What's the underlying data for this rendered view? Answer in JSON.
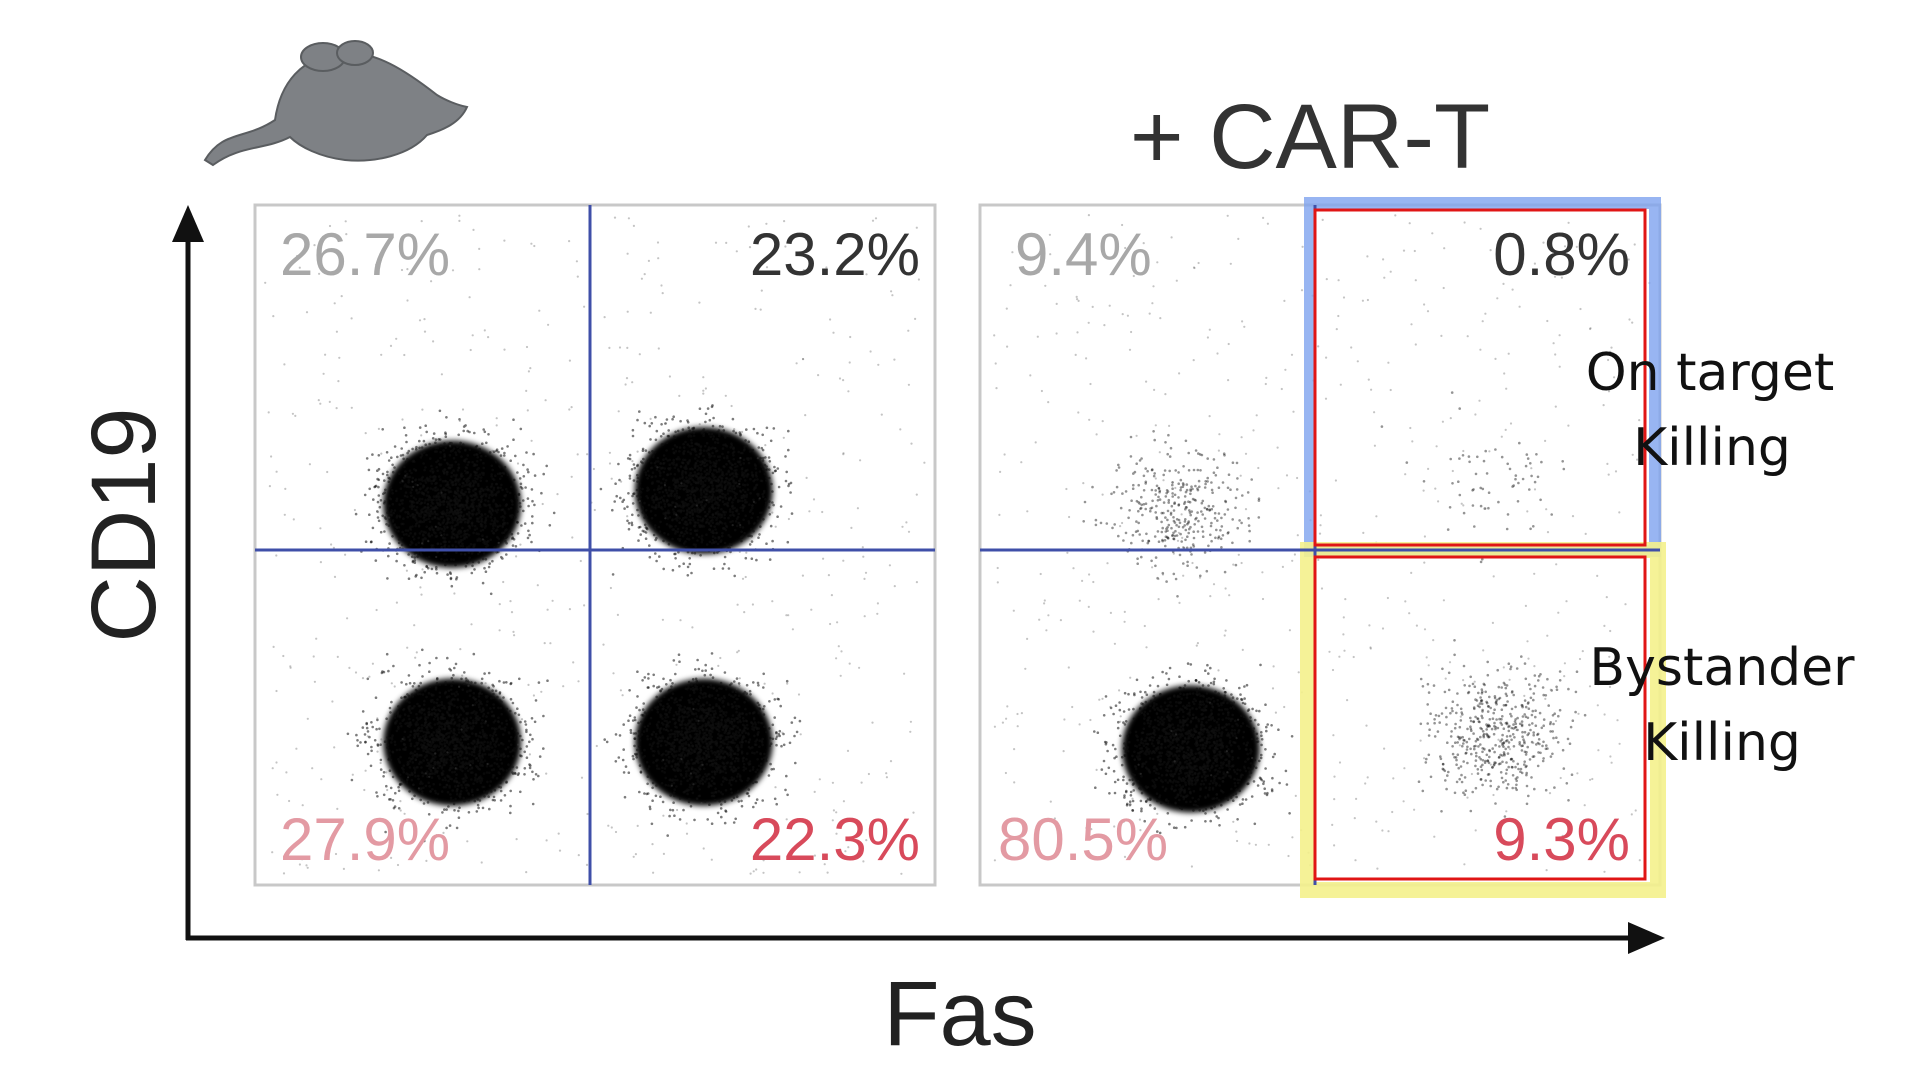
{
  "chart_data": [
    {
      "type": "scatter",
      "title": "",
      "xlabel": "Fas",
      "ylabel": "CD19",
      "quadrants": {
        "upper_left": "26.7%",
        "upper_right": "23.2%",
        "lower_left": "27.9%",
        "lower_right": "22.3%"
      },
      "quadrant_values": {
        "upper_left": 26.7,
        "upper_right": 23.2,
        "lower_left": 27.9,
        "lower_right": 22.3
      },
      "populations": [
        {
          "quadrant": "upper_left",
          "cx": 0.29,
          "cy": 0.56,
          "density": 1.0
        },
        {
          "quadrant": "upper_right",
          "cx": 0.66,
          "cy": 0.58,
          "density": 1.0
        },
        {
          "quadrant": "lower_left",
          "cx": 0.29,
          "cy": 0.21,
          "density": 1.0
        },
        {
          "quadrant": "lower_right",
          "cx": 0.66,
          "cy": 0.21,
          "density": 1.0
        }
      ],
      "icon": "mouse-icon"
    },
    {
      "type": "scatter",
      "title": "+ CAR-T",
      "xlabel": "Fas",
      "ylabel": "CD19",
      "quadrants": {
        "upper_left": "9.4%",
        "upper_right": "0.8%",
        "lower_left": "80.5%",
        "lower_right": "9.3%"
      },
      "quadrant_values": {
        "upper_left": 9.4,
        "upper_right": 0.8,
        "lower_left": 80.5,
        "lower_right": 9.3
      },
      "populations": [
        {
          "quadrant": "upper_left",
          "cx": 0.29,
          "cy": 0.55,
          "density": 0.25
        },
        {
          "quadrant": "upper_right",
          "cx": 0.75,
          "cy": 0.58,
          "density": 0.04
        },
        {
          "quadrant": "lower_left",
          "cx": 0.31,
          "cy": 0.2,
          "density": 1.0
        },
        {
          "quadrant": "lower_right",
          "cx": 0.76,
          "cy": 0.22,
          "density": 0.35
        }
      ],
      "annotations": [
        {
          "text": "On target",
          "text2": "Killing",
          "quadrant": "upper_right"
        },
        {
          "text": "Bystander",
          "text2": "Killing",
          "quadrant": "lower_right"
        }
      ]
    }
  ],
  "colors": {
    "gate_line": "#3f4fa8",
    "upper_left_label": "#a8a8a8",
    "upper_right_label": "#333333",
    "lower_left_label": "#e39aa3",
    "lower_right_label": "#d84a5b",
    "highlight_blue": "#7ea3ef",
    "highlight_yellow": "#f4f18c",
    "gate_red": "#e01515",
    "frame": "#c8c8c8",
    "axis": "#111111"
  }
}
